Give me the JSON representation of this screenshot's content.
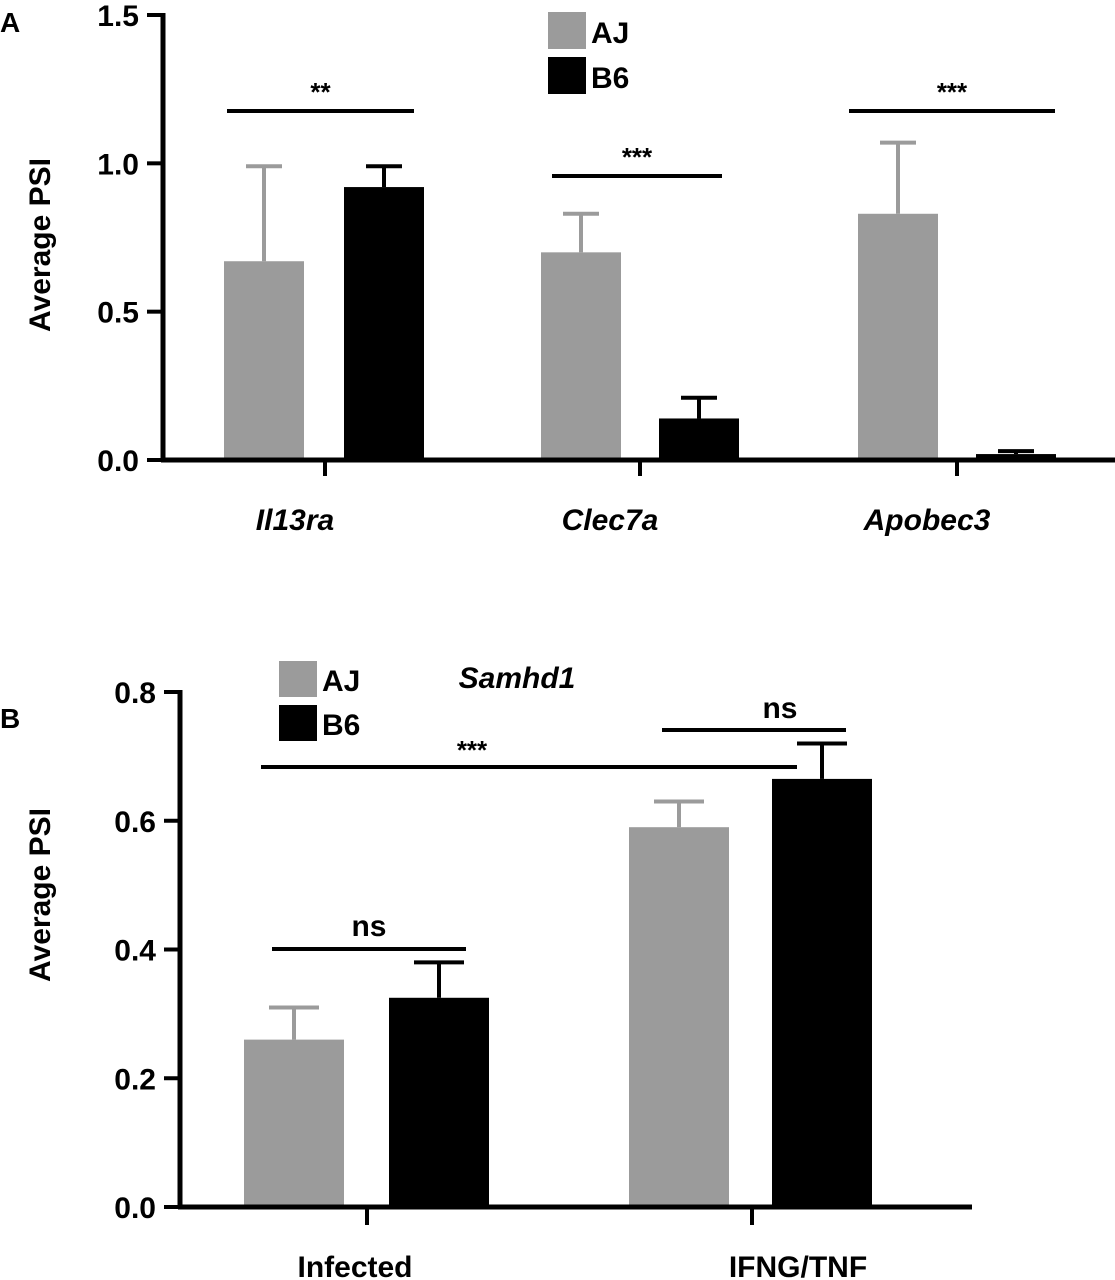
{
  "colors": {
    "AJ": "#9b9b9b",
    "B6": "#000000",
    "axis": "#000000"
  },
  "chart_data": [
    {
      "panel_label": "A",
      "type": "bar",
      "title": "",
      "xlabel": "",
      "ylabel": "Average PSI",
      "ylim": [
        0,
        1.5
      ],
      "yticks": [
        "0.0",
        "0.5",
        "1.0",
        "1.5"
      ],
      "categories": [
        "Il13ra",
        "Clec7a",
        "Apobec3"
      ],
      "category_style": "italic",
      "legend": {
        "position": "top-center",
        "entries": [
          "AJ",
          "B6"
        ]
      },
      "series": [
        {
          "name": "AJ",
          "values": [
            0.67,
            0.7,
            0.83
          ],
          "error": [
            0.32,
            0.13,
            0.24
          ]
        },
        {
          "name": "B6",
          "values": [
            0.92,
            0.14,
            0.02
          ],
          "error": [
            0.07,
            0.07,
            0.01
          ]
        }
      ],
      "significance": [
        {
          "label": "**",
          "category": "Il13ra"
        },
        {
          "label": "***",
          "category": "Clec7a"
        },
        {
          "label": "***",
          "category": "Apobec3"
        }
      ],
      "grid": false
    },
    {
      "panel_label": "B",
      "type": "bar",
      "title": "Samhd1",
      "xlabel": "",
      "ylabel": "Average PSI",
      "ylim": [
        0,
        0.8
      ],
      "yticks": [
        "0.0",
        "0.2",
        "0.4",
        "0.6",
        "0.8"
      ],
      "categories": [
        "Infected",
        "IFNG/TNF"
      ],
      "category_style": "normal",
      "legend": {
        "position": "top-left",
        "entries": [
          "AJ",
          "B6"
        ]
      },
      "series": [
        {
          "name": "AJ",
          "values": [
            0.26,
            0.59
          ],
          "error": [
            0.05,
            0.04
          ]
        },
        {
          "name": "B6",
          "values": [
            0.325,
            0.665
          ],
          "error": [
            0.055,
            0.055
          ]
        }
      ],
      "significance": [
        {
          "label": "ns",
          "between": "Infected AJ vs B6"
        },
        {
          "label": "ns",
          "between": "IFNG/TNF AJ vs B6"
        },
        {
          "label": "***",
          "between": "Infected vs IFNG/TNF"
        }
      ],
      "grid": false
    }
  ]
}
